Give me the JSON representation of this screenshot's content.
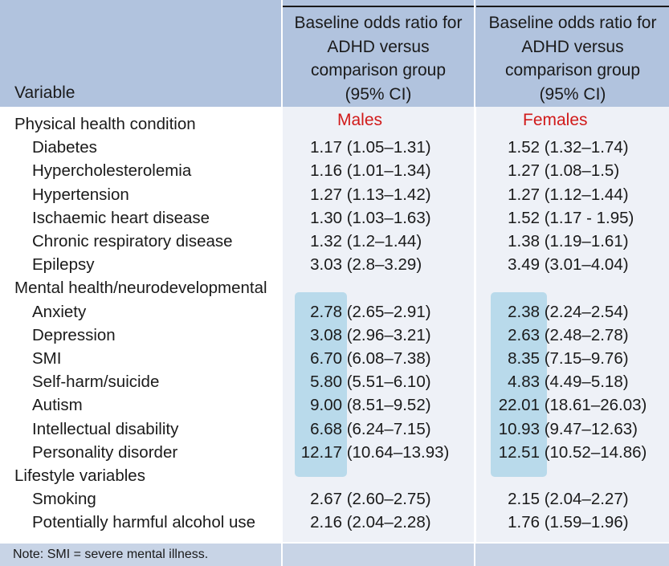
{
  "header": {
    "variable_label": "Variable",
    "col1_lines": [
      "Baseline odds ratio for",
      "ADHD versus",
      "comparison group",
      "(95% CI)"
    ],
    "col2_lines": [
      "Baseline odds ratio for",
      "ADHD versus",
      "comparison group",
      "(95% CI)"
    ]
  },
  "labels": {
    "males": "Males",
    "females": "Females"
  },
  "rows": [
    {
      "label": "Physical health condition",
      "indent": false,
      "m_or": "",
      "m_ci": "",
      "f_or": "",
      "f_ci": ""
    },
    {
      "label": "Diabetes",
      "indent": true,
      "m_or": "1.17",
      "m_ci": "(1.05–1.31)",
      "f_or": "1.52",
      "f_ci": "(1.32–1.74)"
    },
    {
      "label": "Hypercholesterolemia",
      "indent": true,
      "m_or": "1.16",
      "m_ci": "(1.01–1.34)",
      "f_or": "1.27",
      "f_ci": "(1.08–1.5)"
    },
    {
      "label": "Hypertension",
      "indent": true,
      "m_or": "1.27",
      "m_ci": "(1.13–1.42)",
      "f_or": "1.27",
      "f_ci": "(1.12–1.44)"
    },
    {
      "label": "Ischaemic heart disease",
      "indent": true,
      "m_or": "1.30",
      "m_ci": "(1.03–1.63)",
      "f_or": "1.52",
      "f_ci": "(1.17 - 1.95)"
    },
    {
      "label": "Chronic respiratory disease",
      "indent": true,
      "m_or": "1.32",
      "m_ci": "(1.2–1.44)",
      "f_or": "1.38",
      "f_ci": "(1.19–1.61)"
    },
    {
      "label": "Epilepsy",
      "indent": true,
      "m_or": "3.03",
      "m_ci": "(2.8–3.29)",
      "f_or": "3.49",
      "f_ci": "(3.01–4.04)"
    },
    {
      "label": "Mental health/neurodevelopmental",
      "indent": false,
      "m_or": "",
      "m_ci": "",
      "f_or": "",
      "f_ci": ""
    },
    {
      "label": "Anxiety",
      "indent": true,
      "m_or": "2.78",
      "m_ci": "(2.65–2.91)",
      "f_or": "2.38",
      "f_ci": "(2.24–2.54)"
    },
    {
      "label": "Depression",
      "indent": true,
      "m_or": "3.08",
      "m_ci": "(2.96–3.21)",
      "f_or": "2.63",
      "f_ci": "(2.48–2.78)"
    },
    {
      "label": "SMI",
      "indent": true,
      "m_or": "6.70",
      "m_ci": "(6.08–7.38)",
      "f_or": "8.35",
      "f_ci": "(7.15–9.76)"
    },
    {
      "label": "Self-harm/suicide",
      "indent": true,
      "m_or": "5.80",
      "m_ci": "(5.51–6.10)",
      "f_or": "4.83",
      "f_ci": "(4.49–5.18)"
    },
    {
      "label": "Autism",
      "indent": true,
      "m_or": "9.00",
      "m_ci": "(8.51–9.52)",
      "f_or": "22.01",
      "f_ci": "(18.61–26.03)"
    },
    {
      "label": "Intellectual disability",
      "indent": true,
      "m_or": "6.68",
      "m_ci": "(6.24–7.15)",
      "f_or": "10.93",
      "f_ci": "(9.47–12.63)"
    },
    {
      "label": "Personality disorder",
      "indent": true,
      "m_or": "12.17",
      "m_ci": "(10.64–13.93)",
      "f_or": "12.51",
      "f_ci": "(10.52–14.86)"
    },
    {
      "label": "Lifestyle variables",
      "indent": false,
      "m_or": "",
      "m_ci": "",
      "f_or": "",
      "f_ci": ""
    },
    {
      "label": "Smoking",
      "indent": true,
      "m_or": "2.67",
      "m_ci": "(2.60–2.75)",
      "f_or": "2.15",
      "f_ci": "(2.04–2.27)"
    },
    {
      "label": "Potentially harmful alcohol use",
      "indent": true,
      "m_or": "2.16",
      "m_ci": "(2.04–2.28)",
      "f_or": "1.76",
      "f_ci": "(1.59–1.96)"
    }
  ],
  "note": "Note: SMI = severe mental illness.",
  "colors": {
    "header_bg": "#b1c3de",
    "sex_label": "#d11a1a",
    "highlight": "#78bedc"
  }
}
